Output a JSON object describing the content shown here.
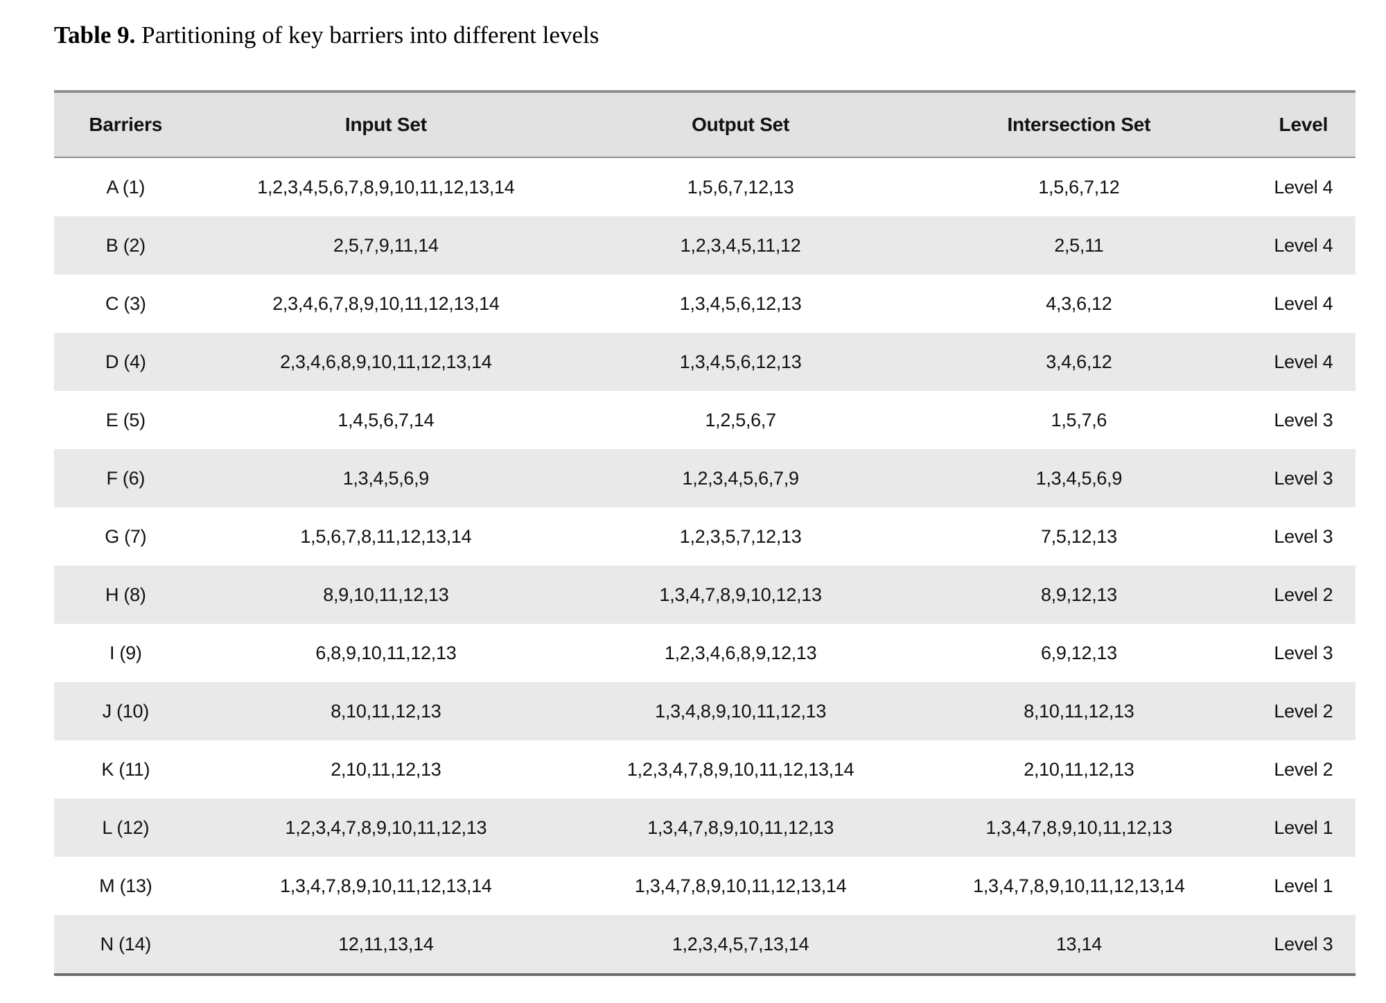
{
  "title": {
    "label": "Table 9.",
    "text": " Partitioning of key barriers into different levels"
  },
  "table": {
    "columns": [
      "Barriers",
      "Input Set",
      "Output Set",
      "Intersection Set",
      "Level"
    ],
    "rows": [
      {
        "barrier": "A (1)",
        "input": "1,2,3,4,5,6,7,8,9,10,11,12,13,14",
        "output": "1,5,6,7,12,13",
        "intersection": "1,5,6,7,12",
        "level": "Level 4"
      },
      {
        "barrier": "B (2)",
        "input": "2,5,7,9,11,14",
        "output": "1,2,3,4,5,11,12",
        "intersection": "2,5,11",
        "level": "Level 4"
      },
      {
        "barrier": "C (3)",
        "input": "2,3,4,6,7,8,9,10,11,12,13,14",
        "output": "1,3,4,5,6,12,13",
        "intersection": "4,3,6,12",
        "level": "Level 4"
      },
      {
        "barrier": "D (4)",
        "input": "2,3,4,6,8,9,10,11,12,13,14",
        "output": "1,3,4,5,6,12,13",
        "intersection": "3,4,6,12",
        "level": "Level 4"
      },
      {
        "barrier": "E (5)",
        "input": "1,4,5,6,7,14",
        "output": "1,2,5,6,7",
        "intersection": "1,5,7,6",
        "level": "Level 3"
      },
      {
        "barrier": "F (6)",
        "input": "1,3,4,5,6,9",
        "output": "1,2,3,4,5,6,7,9",
        "intersection": "1,3,4,5,6,9",
        "level": "Level 3"
      },
      {
        "barrier": "G (7)",
        "input": "1,5,6,7,8,11,12,13,14",
        "output": "1,2,3,5,7,12,13",
        "intersection": "7,5,12,13",
        "level": "Level 3"
      },
      {
        "barrier": "H (8)",
        "input": "8,9,10,11,12,13",
        "output": "1,3,4,7,8,9,10,12,13",
        "intersection": "8,9,12,13",
        "level": "Level 2"
      },
      {
        "barrier": "I (9)",
        "input": "6,8,9,10,11,12,13",
        "output": "1,2,3,4,6,8,9,12,13",
        "intersection": "6,9,12,13",
        "level": "Level 3"
      },
      {
        "barrier": "J (10)",
        "input": "8,10,11,12,13",
        "output": "1,3,4,8,9,10,11,12,13",
        "intersection": "8,10,11,12,13",
        "level": "Level 2"
      },
      {
        "barrier": "K (11)",
        "input": "2,10,11,12,13",
        "output": "1,2,3,4,7,8,9,10,11,12,13,14",
        "intersection": "2,10,11,12,13",
        "level": "Level 2"
      },
      {
        "barrier": "L (12)",
        "input": "1,2,3,4,7,8,9,10,11,12,13",
        "output": "1,3,4,7,8,9,10,11,12,13",
        "intersection": "1,3,4,7,8,9,10,11,12,13",
        "level": "Level 1"
      },
      {
        "barrier": "M (13)",
        "input": "1,3,4,7,8,9,10,11,12,13,14",
        "output": "1,3,4,7,8,9,10,11,12,13,14",
        "intersection": "1,3,4,7,8,9,10,11,12,13,14",
        "level": "Level 1"
      },
      {
        "barrier": "N (14)",
        "input": "12,11,13,14",
        "output": "1,2,3,4,5,7,13,14",
        "intersection": "13,14",
        "level": "Level 3"
      }
    ]
  },
  "colors": {
    "header_bg": "#e2e2e2",
    "stripe_bg": "#e9e9e9",
    "border_top": "#8f8f8f",
    "border_bottom": "#6e6e6e",
    "text": "#111111"
  }
}
